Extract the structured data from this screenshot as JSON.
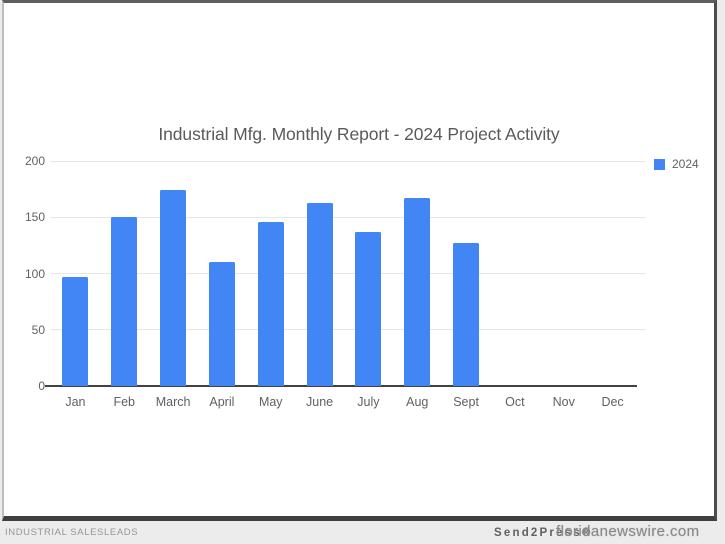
{
  "chart_data": {
    "type": "bar",
    "title": "Industrial Mfg. Monthly Report - 2024 Project Activity",
    "categories": [
      "Jan",
      "Feb",
      "March",
      "April",
      "May",
      "June",
      "July",
      "Aug",
      "Sept",
      "Oct",
      "Nov",
      "Dec"
    ],
    "series": [
      {
        "name": "2024",
        "color": "#4285f4",
        "values": [
          97,
          150,
          174,
          110,
          146,
          163,
          137,
          167,
          127,
          0,
          0,
          0
        ]
      }
    ],
    "xlabel": "",
    "ylabel": "",
    "ylim": [
      0,
      200
    ],
    "yticks": [
      0,
      50,
      100,
      150,
      200
    ],
    "grid": true,
    "legend_position": "right"
  },
  "footer": {
    "publisher": "INDUSTRIAL SALESLEADS",
    "watermark_primary": "Send2Press®",
    "watermark_secondary": "floridanewswire.com"
  },
  "colors": {
    "bar": "#4285f4",
    "gridline": "#e6e6e6",
    "axis_line": "#424242",
    "tick_text": "#616161",
    "title_text": "#5a5a5a"
  }
}
